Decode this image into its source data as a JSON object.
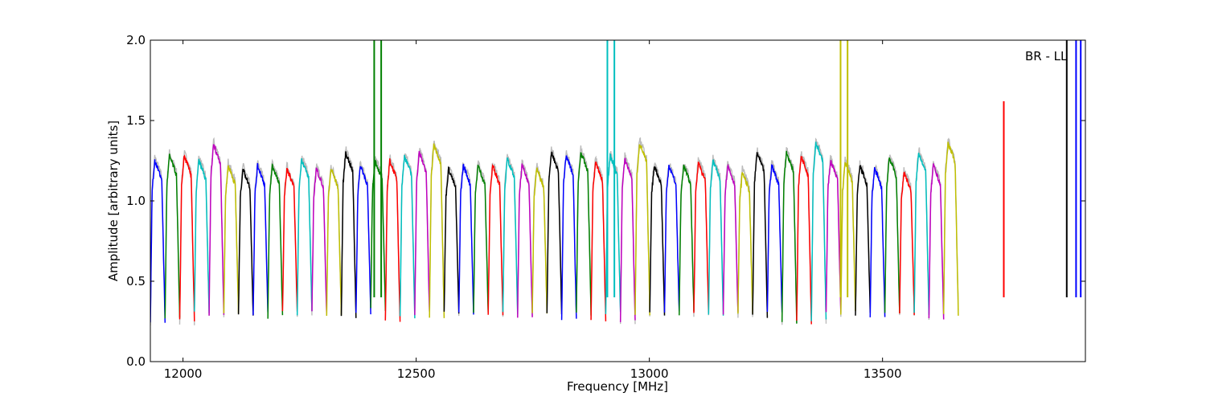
{
  "chart_data": {
    "type": "line",
    "title": "",
    "xlabel": "Frequency [MHz]",
    "ylabel": "Amplitude [arbitrary units]",
    "annotation": "BR - LL",
    "xlim": [
      11930,
      13935
    ],
    "ylim": [
      0.0,
      2.0
    ],
    "xticks": [
      12000,
      12500,
      13000,
      13500
    ],
    "yticks": [
      0.0,
      0.5,
      1.0,
      1.5,
      2.0
    ],
    "ytick_labels": [
      "0.0",
      "0.5",
      "1.0",
      "1.5",
      "2.0"
    ],
    "grid": false,
    "legend": "none",
    "colors": [
      "#0000ff",
      "#008000",
      "#ff0000",
      "#00bfbf",
      "#bf00bf",
      "#bfbf00",
      "#000000"
    ],
    "background_series_color": "#bbbbbb",
    "channel_width_mhz": 31.5,
    "channel_peaks": [
      1.25,
      1.28,
      1.28,
      1.25,
      1.35,
      1.22,
      1.2,
      1.22,
      1.22,
      1.2,
      1.26,
      1.2,
      1.2,
      1.3,
      1.22,
      1.25,
      1.25,
      1.28,
      1.3,
      1.35,
      1.2,
      1.22,
      1.22,
      1.22,
      1.26,
      1.22,
      1.2,
      1.3,
      1.28,
      1.3,
      1.24,
      1.28,
      1.26,
      1.36,
      1.22,
      1.22,
      1.22,
      1.24,
      1.25,
      1.22,
      1.18,
      1.3,
      1.22,
      1.3,
      1.28,
      1.36,
      1.25,
      1.24,
      1.22,
      1.2,
      1.27,
      1.18,
      1.3,
      1.22,
      1.36
    ],
    "channel_troughs": [
      0.25,
      0.26,
      0.25,
      0.3,
      0.3,
      0.3,
      0.29,
      0.3,
      0.28,
      0.3,
      0.3,
      0.3,
      0.29,
      0.28,
      0.3,
      0.32,
      0.25,
      0.27,
      0.3,
      0.28,
      0.3,
      0.3,
      0.29,
      0.3,
      0.3,
      0.28,
      0.3,
      0.3,
      0.27,
      0.3,
      0.26,
      0.3,
      0.25,
      0.3,
      0.3,
      0.3,
      0.3,
      0.3,
      0.3,
      0.3,
      0.29,
      0.28,
      0.3,
      0.25,
      0.24,
      0.25,
      0.3,
      0.3,
      0.3,
      0.29,
      0.3,
      0.3,
      0.3,
      0.27,
      0.3
    ],
    "spikes": [
      {
        "x": 12410,
        "y": 2.0,
        "series": "green"
      },
      {
        "x": 12425,
        "y": 2.0,
        "series": "green"
      },
      {
        "x": 12910,
        "y": 2.0,
        "series": "cyan"
      },
      {
        "x": 12925,
        "y": 2.0,
        "series": "cyan"
      },
      {
        "x": 13410,
        "y": 2.0,
        "series": "olive"
      },
      {
        "x": 13425,
        "y": 2.0,
        "series": "olive"
      },
      {
        "x": 13760,
        "y": 1.62,
        "series": "red"
      },
      {
        "x": 13895,
        "y": 2.0,
        "series": "black"
      },
      {
        "x": 13915,
        "y": 2.0,
        "series": "blue"
      },
      {
        "x": 13925,
        "y": 2.0,
        "series": "blue"
      }
    ]
  }
}
